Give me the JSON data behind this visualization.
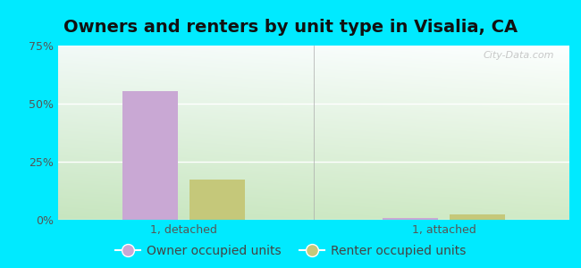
{
  "title": "Owners and renters by unit type in Visalia, CA",
  "categories": [
    "1, detached",
    "1, attached"
  ],
  "owner_values": [
    0.555,
    0.008
  ],
  "renter_values": [
    0.175,
    0.025
  ],
  "owner_color": "#c9a8d4",
  "renter_color": "#c5c87a",
  "ylim": [
    0,
    0.75
  ],
  "yticks": [
    0.0,
    0.25,
    0.5,
    0.75
  ],
  "ytick_labels": [
    "0%",
    "25%",
    "50%",
    "75%"
  ],
  "bar_width": 0.12,
  "group_positions": [
    0.22,
    0.78
  ],
  "outer_bg": "#00eaff",
  "watermark": "City-Data.com",
  "legend_owner": "Owner occupied units",
  "legend_renter": "Renter occupied units",
  "title_fontsize": 14,
  "tick_fontsize": 9,
  "legend_fontsize": 10,
  "bg_gradient_left": "#c8e6c0",
  "bg_gradient_right": "#f5fff5",
  "bg_gradient_top": "#f8fff8",
  "bg_gradient_bottom": "#d0e8c8"
}
